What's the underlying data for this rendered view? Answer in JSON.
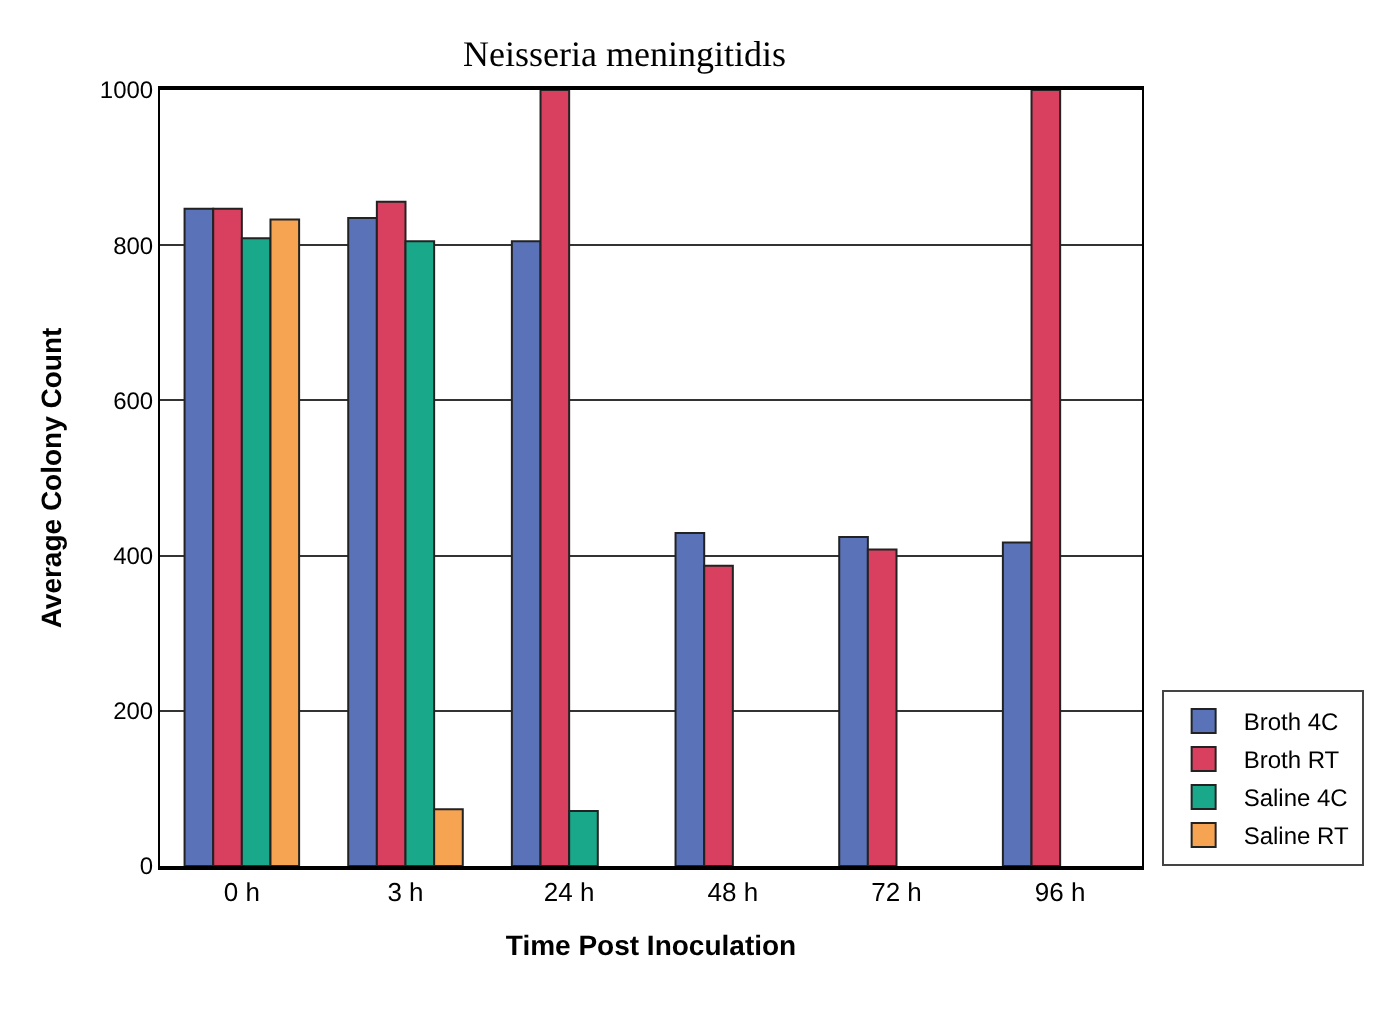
{
  "chart_data": {
    "type": "bar",
    "title": "Neisseria meningitidis",
    "xlabel": "Time Post Inoculation",
    "ylabel": "Average Colony Count",
    "categories": [
      "0 h",
      "3 h",
      "24 h",
      "48 h",
      "72 h",
      "96 h"
    ],
    "series": [
      {
        "name": "Broth 4C",
        "color": "#5a73b8",
        "values": [
          847,
          835,
          805,
          429,
          424,
          417
        ]
      },
      {
        "name": "Broth RT",
        "color": "#d9405f",
        "values": [
          847,
          856,
          1000,
          387,
          408,
          1000
        ]
      },
      {
        "name": "Saline 4C",
        "color": "#1aa88a",
        "values": [
          809,
          805,
          71,
          null,
          null,
          null
        ]
      },
      {
        "name": "Saline RT",
        "color": "#f7a452",
        "values": [
          833,
          73,
          null,
          null,
          null,
          null
        ]
      }
    ],
    "ylim": [
      0,
      1000
    ],
    "yticks": [
      0,
      200,
      400,
      600,
      800,
      1000
    ],
    "grid": "y",
    "legend": "bottom right"
  }
}
